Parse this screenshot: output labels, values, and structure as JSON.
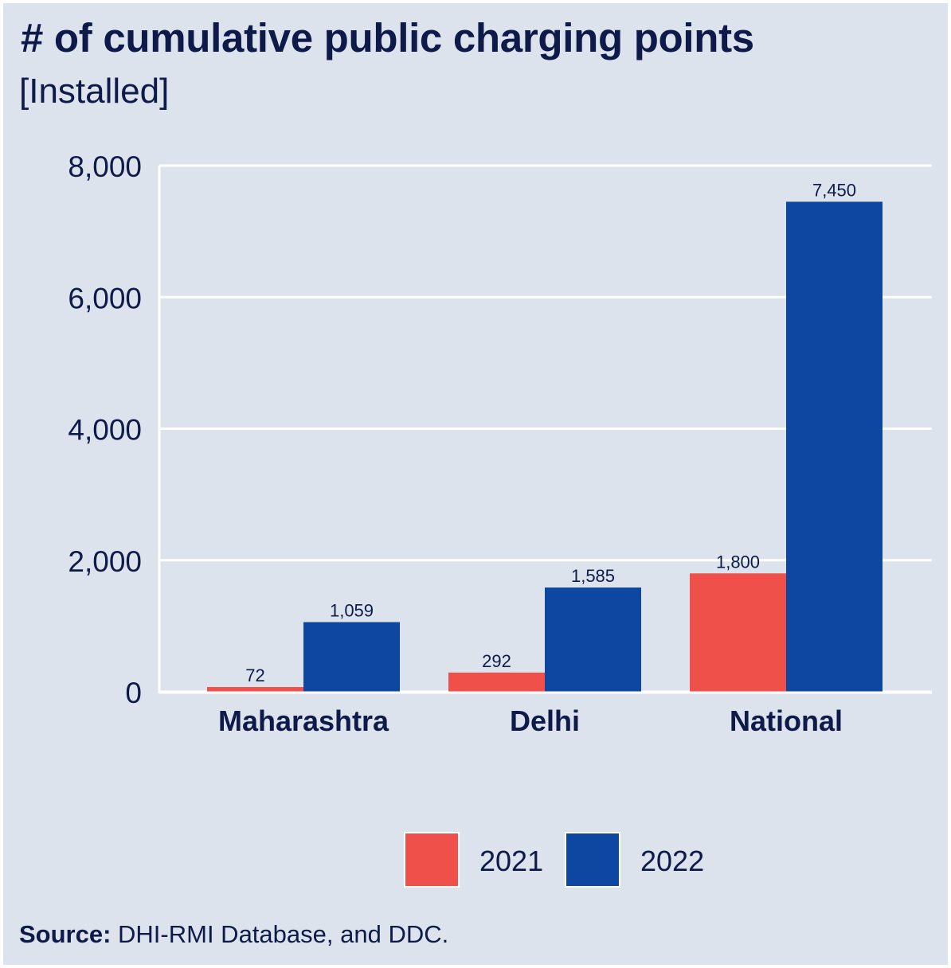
{
  "chart_data": {
    "type": "bar",
    "title": "# of cumulative public charging points",
    "subtitle": "[Installed]",
    "categories": [
      "Maharashtra",
      "Delhi",
      "National"
    ],
    "series": [
      {
        "name": "2021",
        "values": [
          72,
          292,
          1800
        ],
        "labels": [
          "72",
          "292",
          "1,800"
        ],
        "color": "#f0504a"
      },
      {
        "name": "2022",
        "values": [
          1059,
          1585,
          7450
        ],
        "labels": [
          "1,059",
          "1,585",
          "7,450"
        ],
        "color": "#0d47a1"
      }
    ],
    "ylim": [
      0,
      8000
    ],
    "yticks": [
      0,
      2000,
      4000,
      6000,
      8000
    ],
    "ytick_labels": [
      "0",
      "2,000",
      "4,000",
      "6,000",
      "8,000"
    ],
    "xlabel": "",
    "ylabel": "",
    "grid": true,
    "legend_position": "bottom"
  },
  "source": {
    "label": "Source:",
    "text": " DHI-RMI Database, and DDC."
  },
  "colors": {
    "background": "#dce3ec",
    "text": "#0e1b4a",
    "gridline": "#ffffff"
  }
}
